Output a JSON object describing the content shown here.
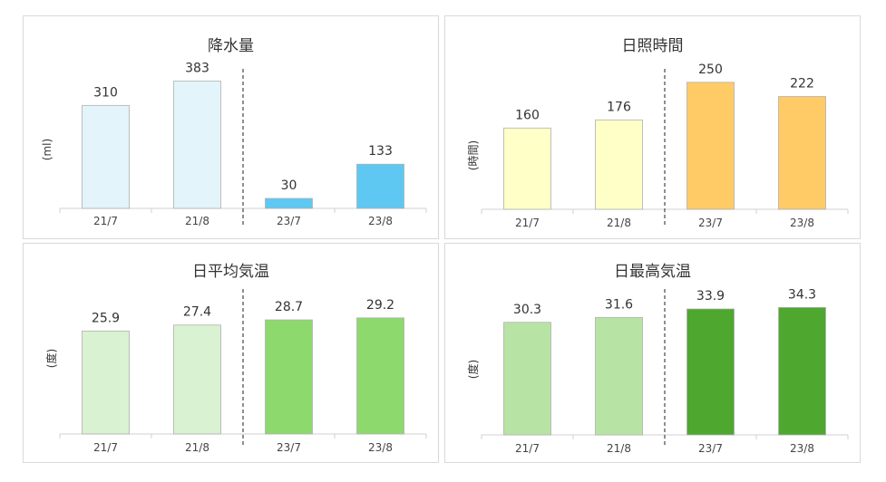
{
  "chart_data": [
    {
      "type": "bar",
      "title": "降水量",
      "ylabel": "(ml)",
      "categories": [
        "21/7",
        "21/8",
        "23/7",
        "23/8"
      ],
      "values": [
        310,
        383,
        30,
        133
      ],
      "ylim": [
        0,
        450
      ],
      "colors": [
        "#e3f4fb",
        "#e3f4fb",
        "#5ec8f2",
        "#5ec8f2"
      ],
      "divider_after": 1,
      "grid": false
    },
    {
      "type": "bar",
      "title": "日照時間",
      "ylabel": "(時間)",
      "categories": [
        "21/7",
        "21/8",
        "23/7",
        "23/8"
      ],
      "values": [
        160,
        176,
        250,
        222
      ],
      "ylim": [
        0,
        280
      ],
      "colors": [
        "#ffffc8",
        "#ffffc8",
        "#ffcb66",
        "#ffcb66"
      ],
      "divider_after": 1,
      "grid": false
    },
    {
      "type": "bar",
      "title": "日平均気温",
      "ylabel": "(度)",
      "categories": [
        "21/7",
        "21/8",
        "23/7",
        "23/8"
      ],
      "values": [
        25.9,
        27.4,
        28.7,
        29.2
      ],
      "ylim": [
        0,
        36
      ],
      "colors": [
        "#d9f2d1",
        "#d9f2d1",
        "#8dd96e",
        "#8dd96e"
      ],
      "divider_after": 1,
      "grid": false
    },
    {
      "type": "bar",
      "title": "日最高気温",
      "ylabel": "(度)",
      "categories": [
        "21/7",
        "21/8",
        "23/7",
        "23/8"
      ],
      "values": [
        30.3,
        31.6,
        33.9,
        34.3
      ],
      "ylim": [
        0,
        40
      ],
      "colors": [
        "#b7e4a4",
        "#b7e4a4",
        "#4ea72e",
        "#4ea72e"
      ],
      "divider_after": 1,
      "grid": false
    }
  ]
}
